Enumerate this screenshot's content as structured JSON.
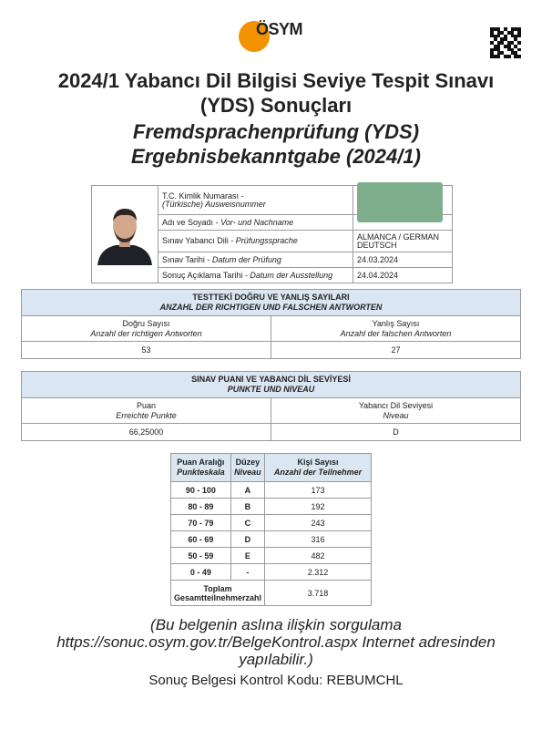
{
  "logo": {
    "text": "ÖSYM",
    "color": "#f39200"
  },
  "title": {
    "line1": "2024/1 Yabancı Dil Bilgisi Seviye Tespit Sınavı",
    "line2": "(YDS) Sonuçları",
    "line3": "Fremdsprachenprüfung (YDS)",
    "line4": "Ergebnisbekanntgabe (2024/1)"
  },
  "info": {
    "rows": [
      {
        "label": "T.C. Kimlik Numarası -",
        "label_de": "(Türkische) Ausweisnummer",
        "value": ""
      },
      {
        "label": "Adı ve Soyadı -",
        "label_de": "Vor- und Nachname",
        "value": ""
      },
      {
        "label": "Sınav Yabancı Dili -",
        "label_de": "Prüfungssprache",
        "value": "ALMANCA / GERMAN",
        "value2": "DEUTSCH"
      },
      {
        "label": "Sınav Tarihi -",
        "label_de": "Datum der Prüfung",
        "value": "24.03.2024"
      },
      {
        "label": "Sonuç Açıklama Tarihi -",
        "label_de": "Datum der Ausstellung",
        "value": "24.04.2024"
      }
    ]
  },
  "answers": {
    "header": "TESTTEKİ DOĞRU VE YANLIŞ SAYILARI",
    "header_de": "ANZAHL DER RICHTIGEN UND FALSCHEN ANTWORTEN",
    "col1": "Doğru Sayısı",
    "col1_de": "Anzahl der richtigen Antworten",
    "col2": "Yanlış Sayısı",
    "col2_de": "Anzahl der falschen Antworten",
    "correct": "53",
    "wrong": "27"
  },
  "score": {
    "header": "SINAV PUANI VE YABANCI DİL SEVİYESİ",
    "header_de": "PUNKTE UND NIVEAU",
    "col1": "Puan",
    "col1_de": "Erreichte Punkte",
    "col2": "Yabancı Dil Seviyesi",
    "col2_de": "Niveau",
    "points": "66,25000",
    "level": "D"
  },
  "scale": {
    "h1": "Puan Aralığı",
    "h1_de": "Punkteskala",
    "h2": "Düzey",
    "h2_de": "Niveau",
    "h3": "Kişi Sayısı",
    "h3_de": "Anzahl der Teilnehmer",
    "rows": [
      {
        "range": "90 - 100",
        "level": "A",
        "count": "173"
      },
      {
        "range": "80 - 89",
        "level": "B",
        "count": "192"
      },
      {
        "range": "70 - 79",
        "level": "C",
        "count": "243"
      },
      {
        "range": "60 - 69",
        "level": "D",
        "count": "316"
      },
      {
        "range": "50 - 59",
        "level": "E",
        "count": "482"
      },
      {
        "range": "0 - 49",
        "level": "-",
        "count": "2.312"
      }
    ],
    "total_label": "Toplam",
    "total_label_de": "Gesamtteilnehmerzahl",
    "total": "3.718"
  },
  "footer": {
    "line1": "(Bu belgenin aslına ilişkin sorgulama",
    "line2": "https://sonuc.osym.gov.tr/BelgeKontrol.aspx Internet adresinden",
    "line3": "yapılabilir.)",
    "code": "Sonuç Belgesi Kontrol Kodu: REBUMCHL"
  },
  "redaction_color": "#7fae8d",
  "header_bg": "#dae6f1"
}
